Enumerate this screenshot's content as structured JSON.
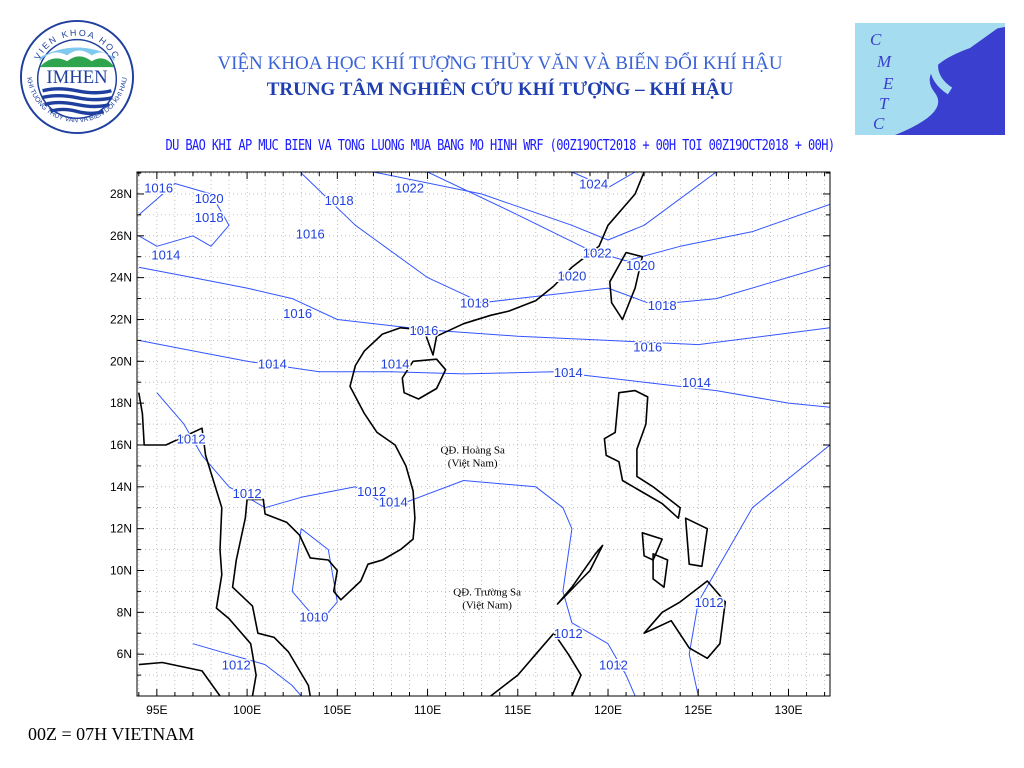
{
  "header": {
    "institute": "VIỆN KHOA HỌC KHÍ TƯỢNG THỦY VĂN VÀ BIẾN ĐỔI KHÍ HẬU",
    "center": "TRUNG TÂM NGHIÊN CỨU KHÍ TƯỢNG – KHÍ HẬU",
    "product_title": "DU BAO KHI AP MUC BIEN VA TONG LUONG MUA BANG MO HINH WRF (00Z19OCT2018 + 00H TOI 00Z19OCT2018 + 00H)"
  },
  "logos": {
    "left": {
      "text": "IMHEN",
      "ring_top": "VIEN KHOA HOC",
      "ring_bottom": "KHI TUONG THUY VAN VA BIEN DOI KHI HAU"
    },
    "right": {
      "text": "CMETC"
    }
  },
  "footer": {
    "note": "00Z = 07H VIETNAM"
  },
  "map": {
    "lon_range": [
      93.9,
      132.3
    ],
    "lat_range": [
      4.0,
      29.05
    ],
    "x_ticks": [
      "95E",
      "100E",
      "105E",
      "110E",
      "115E",
      "120E",
      "125E",
      "130E"
    ],
    "x_tick_values": [
      95,
      100,
      105,
      110,
      115,
      120,
      125,
      130
    ],
    "y_ticks": [
      "6N",
      "8N",
      "10N",
      "12N",
      "14N",
      "16N",
      "18N",
      "20N",
      "22N",
      "24N",
      "26N",
      "28N"
    ],
    "y_tick_values": [
      6,
      8,
      10,
      12,
      14,
      16,
      18,
      20,
      22,
      24,
      26,
      28
    ],
    "colors": {
      "isobar": "#3355ff",
      "coast": "#000000",
      "label": "#2040e0"
    },
    "annotations": [
      {
        "line1": "QĐ. Hoàng Sa",
        "line2": "(Việt Nam)",
        "lon": 112.5,
        "lat": 15.6
      },
      {
        "line1": "QĐ. Trường Sa",
        "line2": "(Việt Nam)",
        "lon": 113.3,
        "lat": 8.8
      }
    ],
    "isobar_labels": [
      {
        "text": "1016",
        "lon": 95.1,
        "lat": 28.3
      },
      {
        "text": "1020",
        "lon": 97.9,
        "lat": 27.8
      },
      {
        "text": "1018",
        "lon": 97.9,
        "lat": 26.9
      },
      {
        "text": "1014",
        "lon": 95.5,
        "lat": 25.1
      },
      {
        "text": "1022",
        "lon": 109.0,
        "lat": 28.3
      },
      {
        "text": "1018",
        "lon": 105.1,
        "lat": 27.7
      },
      {
        "text": "1016",
        "lon": 103.5,
        "lat": 26.1
      },
      {
        "text": "1024",
        "lon": 119.2,
        "lat": 28.5
      },
      {
        "text": "1022",
        "lon": 119.4,
        "lat": 25.2
      },
      {
        "text": "1020",
        "lon": 118.0,
        "lat": 24.1
      },
      {
        "text": "1020",
        "lon": 121.8,
        "lat": 24.6
      },
      {
        "text": "1018",
        "lon": 112.6,
        "lat": 22.8
      },
      {
        "text": "1018",
        "lon": 123.0,
        "lat": 22.7
      },
      {
        "text": "1016",
        "lon": 102.8,
        "lat": 22.3
      },
      {
        "text": "1016",
        "lon": 109.8,
        "lat": 21.5
      },
      {
        "text": "1016",
        "lon": 122.2,
        "lat": 20.7
      },
      {
        "text": "1014",
        "lon": 101.4,
        "lat": 19.9
      },
      {
        "text": "1014",
        "lon": 108.2,
        "lat": 19.9
      },
      {
        "text": "1014",
        "lon": 117.8,
        "lat": 19.5
      },
      {
        "text": "1014",
        "lon": 124.9,
        "lat": 19.0
      },
      {
        "text": "1012",
        "lon": 96.9,
        "lat": 16.3
      },
      {
        "text": "1012",
        "lon": 100.0,
        "lat": 13.7
      },
      {
        "text": "1012",
        "lon": 106.9,
        "lat": 13.8
      },
      {
        "text": "1014",
        "lon": 108.1,
        "lat": 13.3
      },
      {
        "text": "1010",
        "lon": 103.7,
        "lat": 7.8
      },
      {
        "text": "1012",
        "lon": 125.6,
        "lat": 8.5
      },
      {
        "text": "1012",
        "lon": 117.8,
        "lat": 7.0
      },
      {
        "text": "1012",
        "lon": 99.4,
        "lat": 5.5
      },
      {
        "text": "1012",
        "lon": 120.3,
        "lat": 5.5
      }
    ]
  }
}
